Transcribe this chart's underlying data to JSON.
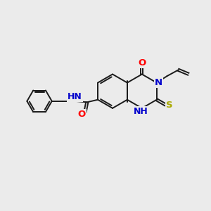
{
  "bg_color": "#ebebeb",
  "bond_color": "#1a1a1a",
  "bond_width": 1.4,
  "atom_colors": {
    "N": "#0000cc",
    "O": "#ff0000",
    "S": "#aaaa00",
    "C": "#1a1a1a"
  },
  "font_size_atom": 8.5,
  "xlim": [
    0,
    10
  ],
  "ylim": [
    0,
    8
  ]
}
